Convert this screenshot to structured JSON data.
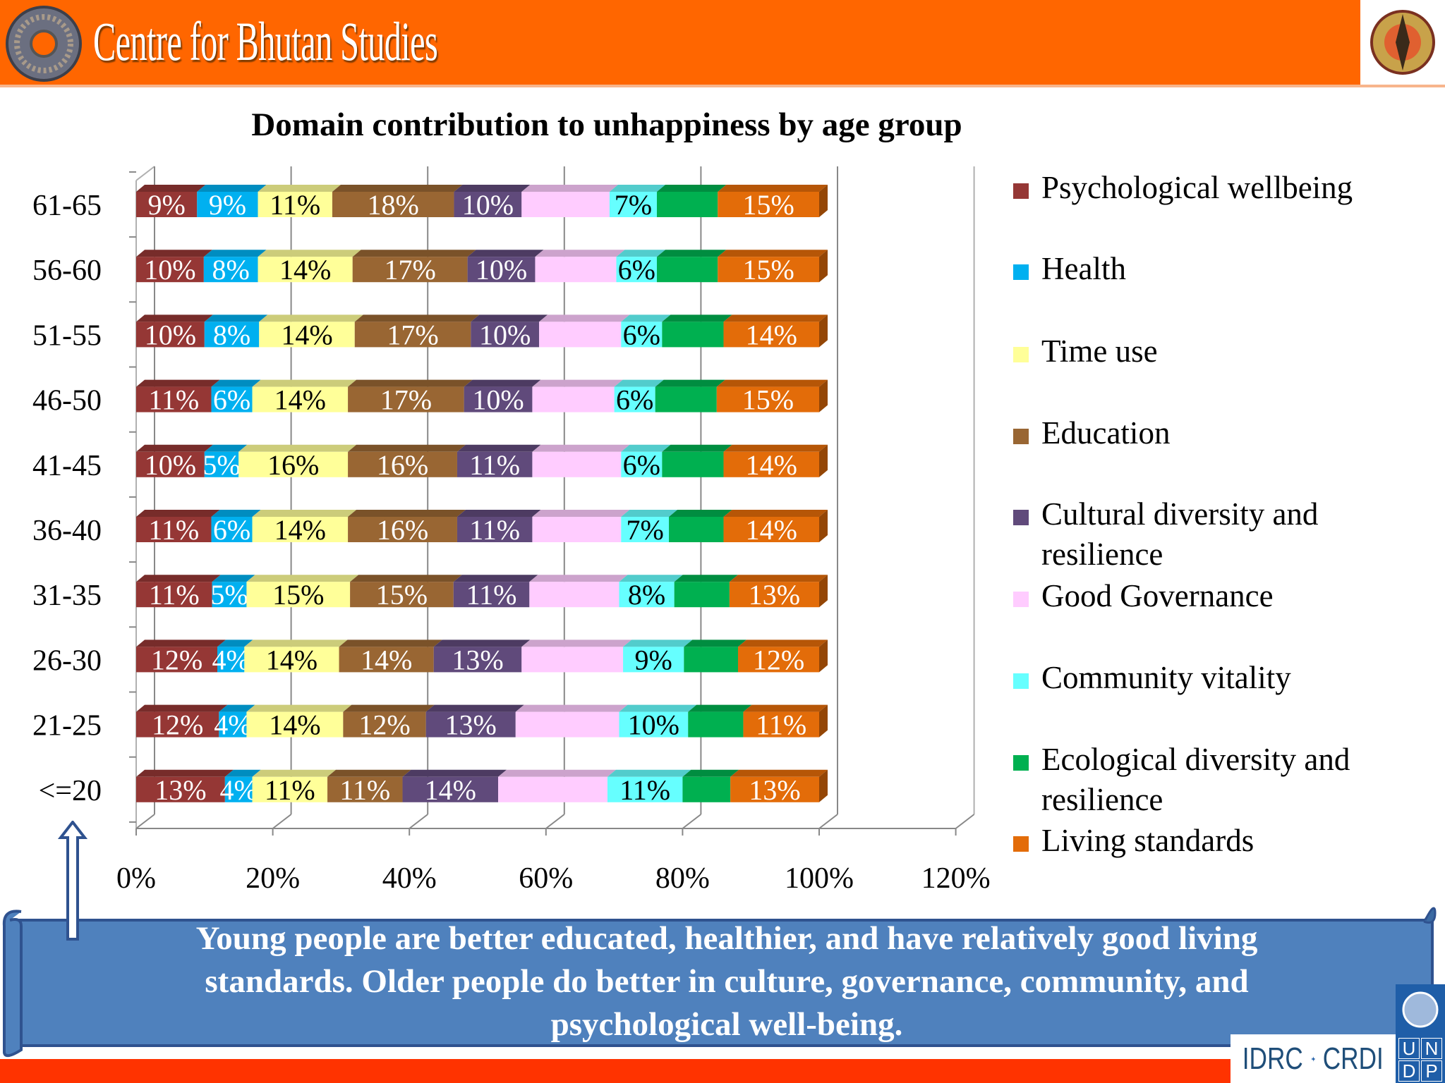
{
  "header": {
    "org_name": "Centre for Bhutan Studies",
    "logo_icon": "dharma-wheel-icon",
    "emblem_icon": "bhutan-emblem"
  },
  "chart_data": {
    "type": "bar",
    "orientation": "horizontal",
    "stacked": "percent",
    "style": "3d",
    "title": "Domain contribution to unhappiness by age group",
    "xlabel": "",
    "ylabel": "",
    "xlim": [
      0,
      120
    ],
    "x_ticks": [
      "0%",
      "20%",
      "40%",
      "60%",
      "80%",
      "100%",
      "120%"
    ],
    "grid": true,
    "legend_position": "right",
    "categories": [
      "61-65",
      "56-60",
      "51-55",
      "46-50",
      "41-45",
      "36-40",
      "31-35",
      "26-30",
      "21-25",
      "<=20"
    ],
    "series": [
      {
        "name": "Psychological wellbeing",
        "color": "#953735",
        "label_color": "#ffffff",
        "labeled": true,
        "values": [
          9,
          10,
          10,
          11,
          10,
          11,
          11,
          12,
          12,
          13
        ]
      },
      {
        "name": "Health",
        "color": "#00b0f0",
        "label_color": "#ffffff",
        "labeled": true,
        "values": [
          9,
          8,
          8,
          6,
          5,
          6,
          5,
          4,
          4,
          4
        ]
      },
      {
        "name": "Time use",
        "color": "#ffff99",
        "label_color": "#000000",
        "labeled": true,
        "values": [
          11,
          14,
          14,
          14,
          16,
          14,
          15,
          14,
          14,
          11
        ]
      },
      {
        "name": "Education",
        "color": "#996633",
        "label_color": "#ffffff",
        "labeled": true,
        "values": [
          18,
          17,
          17,
          17,
          16,
          16,
          15,
          14,
          12,
          11
        ]
      },
      {
        "name": "Cultural diversity and resilience",
        "color": "#604a7b",
        "label_color": "#ffffff",
        "labeled": true,
        "values": [
          10,
          10,
          10,
          10,
          11,
          11,
          11,
          13,
          13,
          14
        ]
      },
      {
        "name": "Good Governance",
        "color": "#ffccff",
        "label_color": "#000000",
        "labeled": false,
        "values": [
          13,
          12,
          12,
          12,
          13,
          13,
          13,
          15,
          15,
          16
        ]
      },
      {
        "name": "Community vitality",
        "color": "#66ffff",
        "label_color": "#000000",
        "labeled": true,
        "values": [
          7,
          6,
          6,
          6,
          6,
          7,
          8,
          9,
          10,
          11
        ]
      },
      {
        "name": "Ecological diversity and resilience",
        "color": "#00b050",
        "label_color": "#ffffff",
        "labeled": false,
        "values": [
          9,
          9,
          9,
          9,
          9,
          8,
          8,
          8,
          8,
          7
        ]
      },
      {
        "name": "Living standards",
        "color": "#e36c09",
        "label_color": "#ffffff",
        "labeled": true,
        "values": [
          15,
          15,
          14,
          15,
          14,
          14,
          13,
          12,
          11,
          13
        ]
      }
    ],
    "legend_lines": [
      [
        "Psychological wellbeing"
      ],
      [
        "Health"
      ],
      [
        "Time use"
      ],
      [
        "Education"
      ],
      [
        "Cultural diversity and",
        "resilience"
      ],
      [
        "Good Governance"
      ],
      [
        "Community vitality"
      ],
      [
        "Ecological diversity and",
        "resilience"
      ],
      [
        "Living standards"
      ]
    ]
  },
  "banner": {
    "lines": [
      "Young people are better educated, healthier, and have relatively good living",
      "standards.  Older people do better in culture, governance, community, and",
      "psychological well-being."
    ],
    "color": "#4f81bd"
  },
  "footer": {
    "idrc": "IDRC",
    "crdi": "CRDI",
    "undp_letters": [
      "U",
      "N",
      "D",
      "P"
    ]
  }
}
